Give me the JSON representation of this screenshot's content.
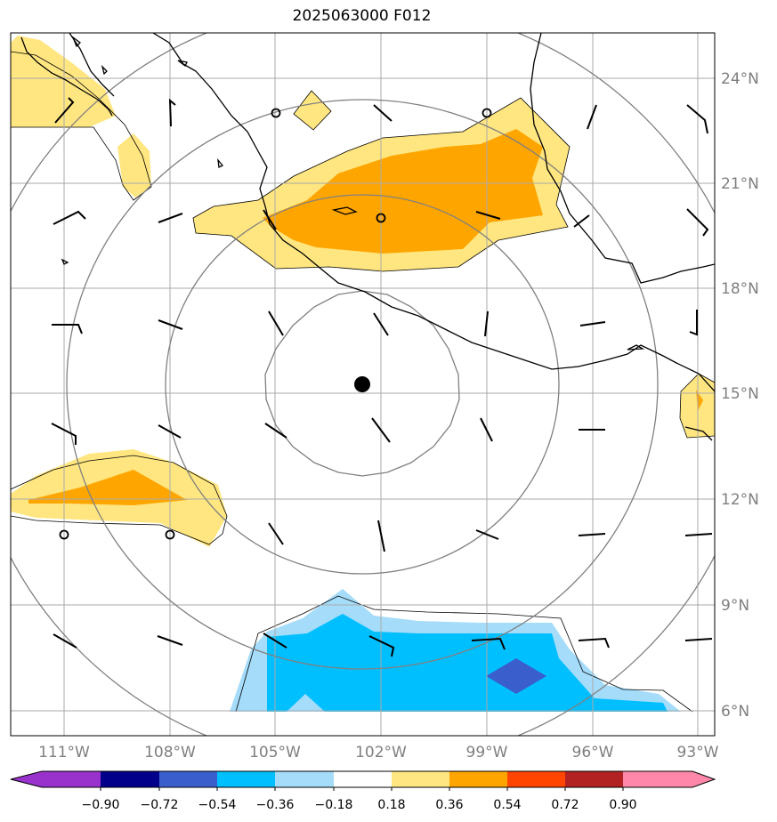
{
  "title": "2025063000 F012",
  "map": {
    "lat_labels": [
      "24°N",
      "21°N",
      "18°N",
      "15°N",
      "12°N",
      "9°N",
      "6°N"
    ],
    "lon_labels": [
      "111°W",
      "108°W",
      "105°W",
      "102°W",
      "99°W",
      "96°W",
      "93°W"
    ],
    "lats": [
      24,
      21,
      18,
      15,
      12,
      9,
      6
    ],
    "lons": [
      -111,
      -108,
      -105,
      -102,
      -99,
      -96,
      -93
    ],
    "center": {
      "lat": 15.3,
      "lon": -102.6
    },
    "grid_color": "#aaaaaa",
    "ring_color": "#808080"
  },
  "colorbar": {
    "ticks": [
      "−0.90",
      "−0.72",
      "−0.54",
      "−0.36",
      "−0.18",
      "0.18",
      "0.36",
      "0.54",
      "0.72",
      "0.90"
    ],
    "colors": [
      "#9932cc",
      "#00008b",
      "#3a5fcd",
      "#00bfff",
      "#a4dcfa",
      "#ffffff",
      "#ffe680",
      "#ffa500",
      "#ff4500",
      "#b22222",
      "#ff88aa"
    ]
  }
}
